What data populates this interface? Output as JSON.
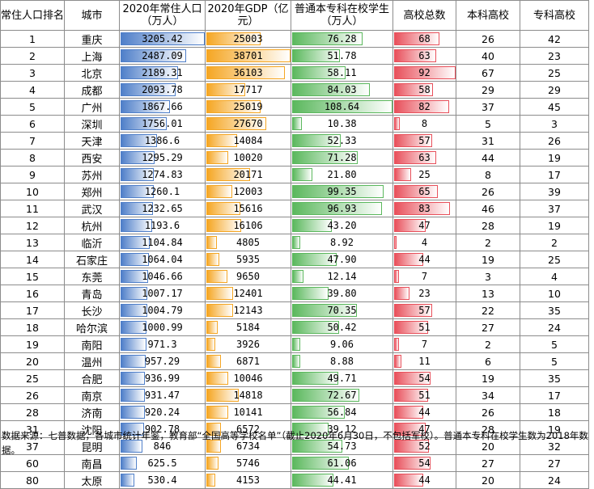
{
  "headers": {
    "rank": "常住人口排名",
    "city": "城市",
    "pop": "2020年常住人口（万人）",
    "gdp": "2020年GDP（亿元）",
    "students": "普通本专科在校学生（万人）",
    "total": "高校总数",
    "undergrad": "本科高校",
    "vocational": "专科高校"
  },
  "colors": {
    "pop_bar": "#4f7fc9",
    "gdp_bar": "#f5a623",
    "students_bar": "#5bb85d",
    "total_bar": "#e8505b"
  },
  "rows": [
    {
      "rank": "1",
      "city": "重庆",
      "pop": "3205.42",
      "gdp": "25003",
      "students": "76.28",
      "total": "68",
      "undergrad": "26",
      "vocational": "42"
    },
    {
      "rank": "2",
      "city": "上海",
      "pop": "2487.09",
      "gdp": "38701",
      "students": "51.78",
      "total": "63",
      "undergrad": "40",
      "vocational": "23"
    },
    {
      "rank": "3",
      "city": "北京",
      "pop": "2189.31",
      "gdp": "36103",
      "students": "58.11",
      "total": "92",
      "undergrad": "67",
      "vocational": "25"
    },
    {
      "rank": "4",
      "city": "成都",
      "pop": "2093.78",
      "gdp": "17717",
      "students": "84.03",
      "total": "58",
      "undergrad": "29",
      "vocational": "29"
    },
    {
      "rank": "5",
      "city": "广州",
      "pop": "1867.66",
      "gdp": "25019",
      "students": "108.64",
      "total": "82",
      "undergrad": "37",
      "vocational": "45"
    },
    {
      "rank": "6",
      "city": "深圳",
      "pop": "1756.01",
      "gdp": "27670",
      "students": "10.38",
      "total": "8",
      "undergrad": "5",
      "vocational": "3"
    },
    {
      "rank": "7",
      "city": "天津",
      "pop": "1386.6",
      "gdp": "14084",
      "students": "52.33",
      "total": "57",
      "undergrad": "31",
      "vocational": "26"
    },
    {
      "rank": "8",
      "city": "西安",
      "pop": "1295.29",
      "gdp": "10020",
      "students": "71.28",
      "total": "63",
      "undergrad": "44",
      "vocational": "19"
    },
    {
      "rank": "9",
      "city": "苏州",
      "pop": "1274.83",
      "gdp": "20171",
      "students": "21.80",
      "total": "25",
      "undergrad": "8",
      "vocational": "17"
    },
    {
      "rank": "10",
      "city": "郑州",
      "pop": "1260.1",
      "gdp": "12003",
      "students": "99.35",
      "total": "65",
      "undergrad": "26",
      "vocational": "39"
    },
    {
      "rank": "11",
      "city": "武汉",
      "pop": "1232.65",
      "gdp": "15616",
      "students": "96.93",
      "total": "83",
      "undergrad": "46",
      "vocational": "37"
    },
    {
      "rank": "12",
      "city": "杭州",
      "pop": "1193.6",
      "gdp": "16106",
      "students": "43.20",
      "total": "47",
      "undergrad": "28",
      "vocational": "19"
    },
    {
      "rank": "13",
      "city": "临沂",
      "pop": "1104.84",
      "gdp": "4805",
      "students": "8.92",
      "total": "4",
      "undergrad": "2",
      "vocational": "2"
    },
    {
      "rank": "14",
      "city": "石家庄",
      "pop": "1064.04",
      "gdp": "5935",
      "students": "47.90",
      "total": "44",
      "undergrad": "19",
      "vocational": "25"
    },
    {
      "rank": "15",
      "city": "东莞",
      "pop": "1046.66",
      "gdp": "9650",
      "students": "12.14",
      "total": "7",
      "undergrad": "3",
      "vocational": "4"
    },
    {
      "rank": "16",
      "city": "青岛",
      "pop": "1007.17",
      "gdp": "12401",
      "students": "39.80",
      "total": "23",
      "undergrad": "13",
      "vocational": "10"
    },
    {
      "rank": "17",
      "city": "长沙",
      "pop": "1004.79",
      "gdp": "12143",
      "students": "70.35",
      "total": "57",
      "undergrad": "22",
      "vocational": "35"
    },
    {
      "rank": "18",
      "city": "哈尔滨",
      "pop": "1000.99",
      "gdp": "5184",
      "students": "50.42",
      "total": "51",
      "undergrad": "27",
      "vocational": "24"
    },
    {
      "rank": "19",
      "city": "南阳",
      "pop": "971.3",
      "gdp": "3926",
      "students": "9.06",
      "total": "7",
      "undergrad": "2",
      "vocational": "5"
    },
    {
      "rank": "20",
      "city": "温州",
      "pop": "957.29",
      "gdp": "6871",
      "students": "8.88",
      "total": "11",
      "undergrad": "6",
      "vocational": "5"
    },
    {
      "rank": "25",
      "city": "合肥",
      "pop": "936.99",
      "gdp": "10046",
      "students": "49.71",
      "total": "54",
      "undergrad": "19",
      "vocational": "35"
    },
    {
      "rank": "26",
      "city": "南京",
      "pop": "931.47",
      "gdp": "14818",
      "students": "72.67",
      "total": "51",
      "undergrad": "34",
      "vocational": "17"
    },
    {
      "rank": "28",
      "city": "济南",
      "pop": "920.24",
      "gdp": "10141",
      "students": "56.84",
      "total": "44",
      "undergrad": "26",
      "vocational": "18"
    },
    {
      "rank": "31",
      "city": "沈阳",
      "pop": "902.78",
      "gdp": "6572",
      "students": "39.12",
      "total": "47",
      "undergrad": "28",
      "vocational": "19"
    },
    {
      "rank": "37",
      "city": "昆明",
      "pop": "846",
      "gdp": "6734",
      "students": "54.73",
      "total": "52",
      "undergrad": "20",
      "vocational": "32"
    },
    {
      "rank": "60",
      "city": "南昌",
      "pop": "625.5",
      "gdp": "5746",
      "students": "61.06",
      "total": "54",
      "undergrad": "27",
      "vocational": "27"
    },
    {
      "rank": "80",
      "city": "太原",
      "pop": "530.4",
      "gdp": "4153",
      "students": "44.41",
      "total": "44",
      "undergrad": "20",
      "vocational": "24"
    }
  ],
  "footer": "数据来源：七普数据，各城市统计年鉴，教育部“全国高等学校名单”（截止2020年6月30日，不包括军校）。普通本专科在校学生数为2018年数据。"
}
